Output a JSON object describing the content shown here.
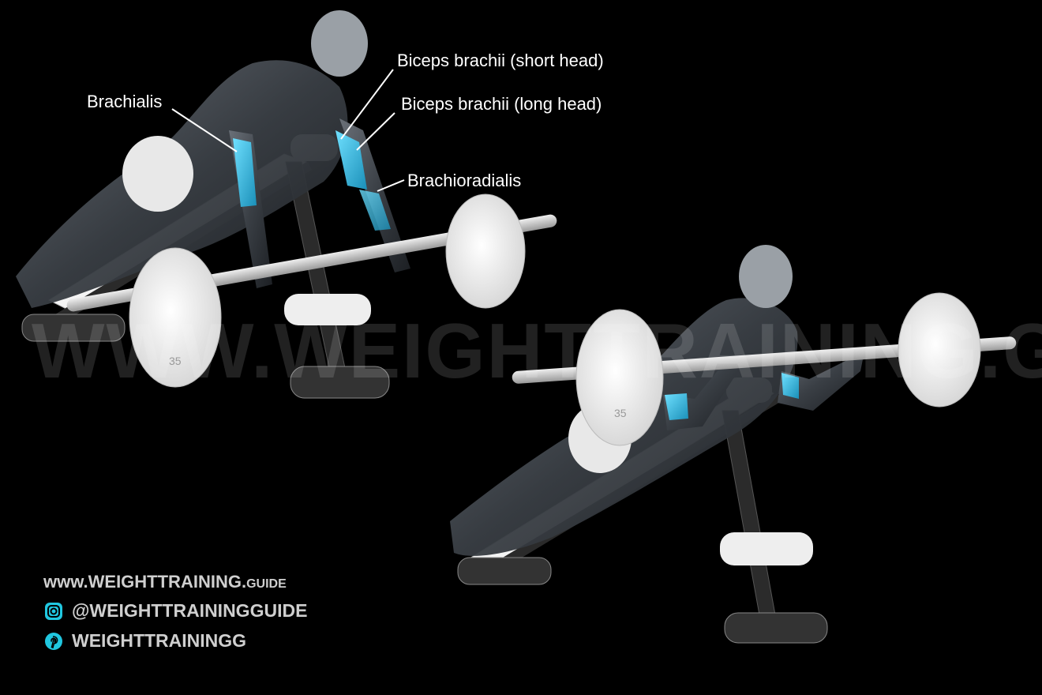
{
  "labels": {
    "brachialis": "Brachialis",
    "biceps_short": "Biceps brachii (short head)",
    "biceps_long": "Biceps brachii (long head)",
    "brachioradialis": "Brachioradialis"
  },
  "plate_weight": "35",
  "watermark": "WWW.WEIGHTTRAINING.GUIDE",
  "branding": {
    "url_main": "www.WEIGHTTRAINING.",
    "url_suffix": "GUIDE",
    "instagram": "@WEIGHTTRAININGGUIDE",
    "pinterest": "WEIGHTTRAININGG"
  },
  "colors": {
    "background": "#000000",
    "muscle_highlight": "#2fc3e8",
    "equipment_white": "#f2f2f2",
    "body_dark": "#3a3f45"
  },
  "icons": [
    "instagram-icon",
    "pinterest-icon"
  ]
}
